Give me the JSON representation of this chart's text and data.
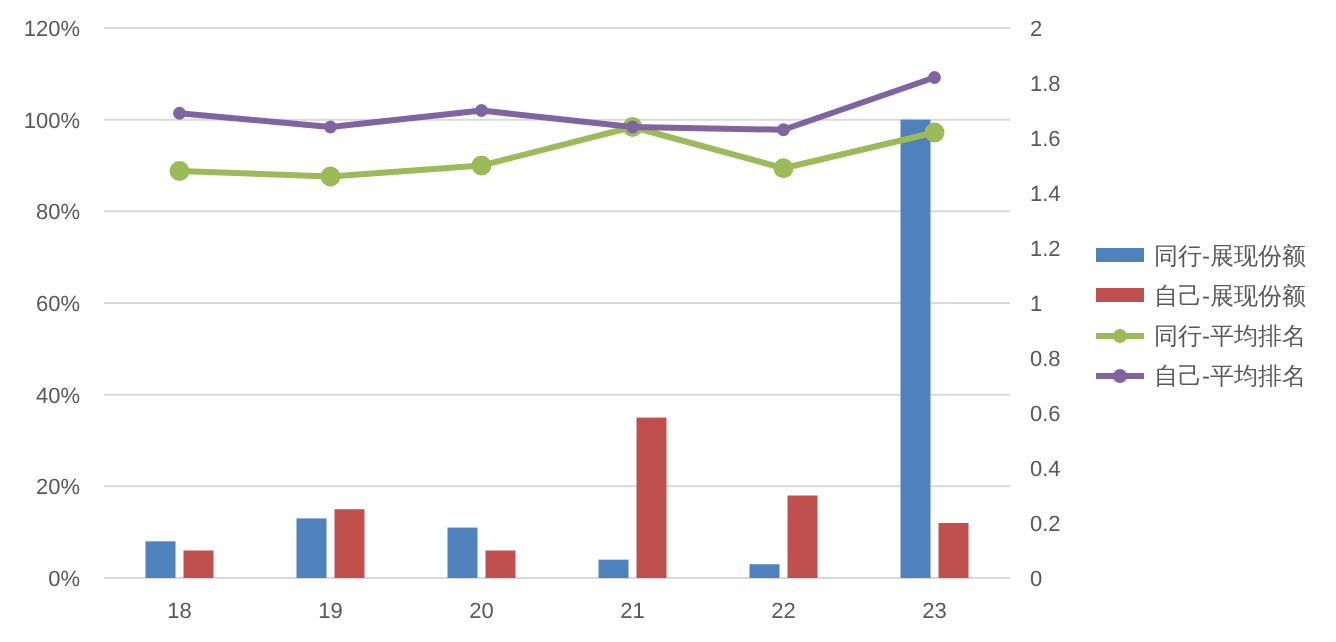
{
  "chart_data": {
    "type": "bar",
    "categories": [
      "18",
      "19",
      "20",
      "21",
      "22",
      "23"
    ],
    "series": [
      {
        "name": "同行-展现份额",
        "color": "#4f81bd",
        "values": [
          8,
          13,
          11,
          4,
          3,
          100
        ]
      },
      {
        "name": "自己-展现份额",
        "color": "#c0504d",
        "values": [
          6,
          15,
          6,
          35,
          18,
          12
        ]
      },
      {
        "name": "同行-平均排名",
        "type": "line",
        "axis": "y2",
        "color": "#9bbb59",
        "values": [
          1.48,
          1.46,
          1.5,
          1.64,
          1.49,
          1.62
        ]
      },
      {
        "name": "自己-平均排名",
        "type": "line",
        "axis": "y2",
        "color": "#8064a2",
        "values": [
          1.69,
          1.64,
          1.7,
          1.64,
          1.63,
          1.82
        ]
      }
    ],
    "ylim": [
      0,
      120
    ],
    "yticks": [
      {
        "value": 0,
        "label": "0%"
      },
      {
        "value": 20,
        "label": "20%"
      },
      {
        "value": 40,
        "label": "40%"
      },
      {
        "value": 60,
        "label": "60%"
      },
      {
        "value": 80,
        "label": "80%"
      },
      {
        "value": 100,
        "label": "100%"
      },
      {
        "value": 120,
        "label": "120%"
      }
    ],
    "y2lim": [
      0,
      2
    ],
    "y2ticks": [
      0,
      0.2,
      0.4,
      0.6,
      0.8,
      1,
      1.2,
      1.4,
      1.6,
      1.8,
      2
    ],
    "grid": "y",
    "legend": "right",
    "marker": "circle"
  }
}
